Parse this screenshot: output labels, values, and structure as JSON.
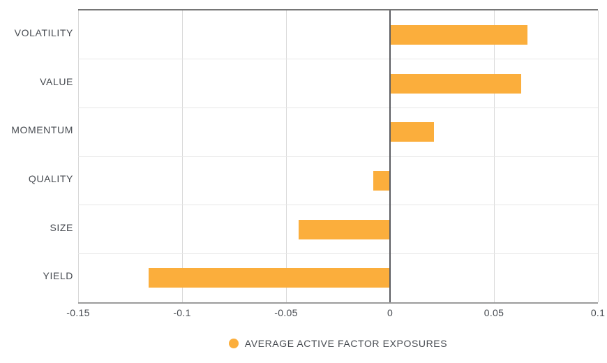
{
  "chart_data": {
    "type": "bar",
    "orientation": "horizontal",
    "title": "",
    "categories": [
      "VOLATILITY",
      "VALUE",
      "MOMENTUM",
      "QUALITY",
      "SIZE",
      "YIELD"
    ],
    "values": [
      0.066,
      0.063,
      0.021,
      -0.008,
      -0.044,
      -0.116
    ],
    "series_name": "AVERAGE ACTIVE FACTOR EXPOSURES",
    "xlim": [
      -0.15,
      0.1
    ],
    "x_ticks": [
      -0.15,
      -0.1,
      -0.05,
      0,
      0.05,
      0.1
    ],
    "x_tick_labels": [
      "-0.15",
      "-0.1",
      "-0.05",
      "0",
      "0.05",
      "0.1"
    ],
    "grid": true,
    "legend_position": "bottom",
    "bar_color": "#fbae3c"
  },
  "legend": {
    "label": "AVERAGE ACTIVE FACTOR EXPOSURES",
    "marker": "circle-icon"
  },
  "colors": {
    "bar": "#fbae3c",
    "label_text": "#474b51",
    "zero_line": "#5a5b60",
    "vertical_gridline": "#d9d9d9",
    "row_gridline": "#e7e7e7",
    "axis_top_border": "#767676",
    "axis_bottom_border": "#9b9b9b",
    "background": "#ffffff"
  }
}
